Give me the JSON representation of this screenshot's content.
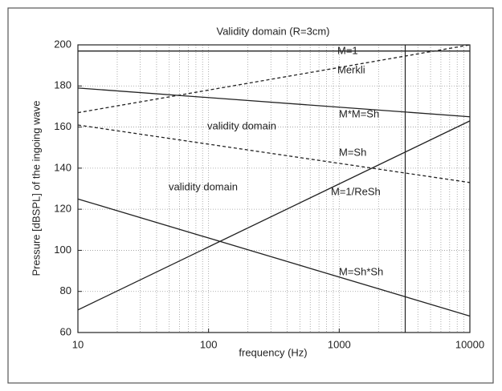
{
  "chart_data": {
    "type": "line",
    "title": "Validity domain (R=3cm)",
    "x_label": "frequency (Hz)",
    "y_label": "Pressure [dBSPL] of the ingoing wave",
    "x_scale": "log",
    "xlim": [
      10,
      10000
    ],
    "xticks": [
      10,
      100,
      1000,
      10000
    ],
    "ylim": [
      60,
      200
    ],
    "yticks": [
      60,
      80,
      100,
      120,
      140,
      160,
      180,
      200
    ],
    "grid": true,
    "color": "#222222",
    "series": [
      {
        "x": [
          10,
          10000
        ],
        "values": [
          197,
          197
        ],
        "style": "solid"
      },
      {
        "x": [
          10,
          10000
        ],
        "values": [
          167,
          200
        ],
        "style": "dashed"
      },
      {
        "x": [
          10,
          10000
        ],
        "values": [
          179,
          165
        ],
        "style": "solid"
      },
      {
        "x": [
          10,
          10000
        ],
        "values": [
          161,
          133
        ],
        "style": "dashed"
      },
      {
        "x": [
          10,
          10000
        ],
        "values": [
          71,
          163
        ],
        "style": "solid"
      },
      {
        "x": [
          10,
          10000
        ],
        "values": [
          125,
          68
        ],
        "style": "solid"
      }
    ],
    "vline": 3200,
    "annotations": [
      "M=1",
      "Merkli",
      "M*M=Sh",
      "validity domain",
      "M=Sh",
      "validity domain",
      "M=1/ReSh",
      "M=Sh*Sh"
    ]
  }
}
